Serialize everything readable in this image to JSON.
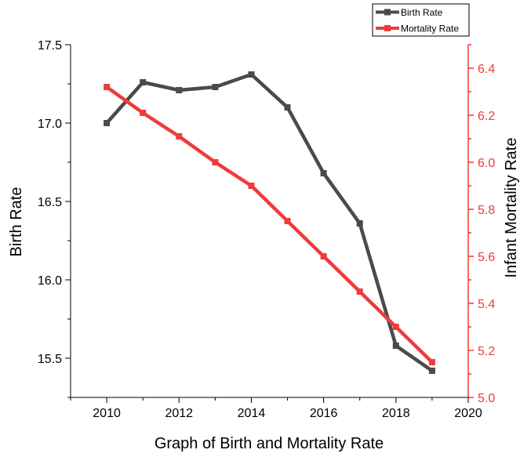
{
  "chart_data": {
    "type": "line",
    "xlabel": "Graph of Birth and Mortality Rate",
    "ylabel_left": "Birth Rate",
    "ylabel_right": "Infant Mortality Rate",
    "xlim": [
      2009,
      2020
    ],
    "ylim_left": [
      15.25,
      17.5
    ],
    "ylim_right": [
      5.0,
      6.5
    ],
    "x_ticks": [
      "2010",
      "2012",
      "2014",
      "2016",
      "2018",
      "2020"
    ],
    "y_left_ticks": [
      "15.5",
      "16.0",
      "16.5",
      "17.0",
      "17.5"
    ],
    "y_right_ticks": [
      "5.0",
      "5.2",
      "5.4",
      "5.6",
      "5.8",
      "6.0",
      "6.2",
      "6.4"
    ],
    "x": [
      2010,
      2011,
      2012,
      2013,
      2014,
      2015,
      2016,
      2017,
      2018,
      2019
    ],
    "series": [
      {
        "name": "Birth Rate",
        "axis": "left",
        "color": "#4a4a4a",
        "values": [
          17.0,
          17.26,
          17.21,
          17.23,
          17.31,
          17.1,
          16.68,
          16.36,
          15.58,
          15.42
        ]
      },
      {
        "name": "Mortality Rate",
        "axis": "right",
        "color": "#ef3b3b",
        "values": [
          6.32,
          6.21,
          6.11,
          6.0,
          5.9,
          5.75,
          5.6,
          5.45,
          5.3,
          5.15
        ]
      }
    ],
    "legend_position": "top-right",
    "grid": false
  }
}
